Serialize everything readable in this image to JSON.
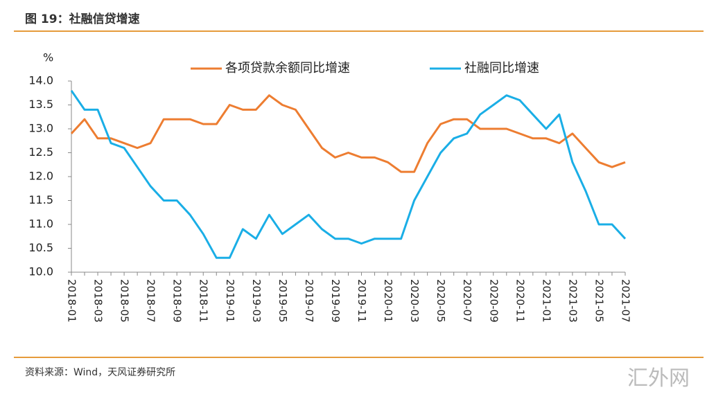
{
  "header": {
    "title": "图 19：社融信贷增速"
  },
  "chart_data": {
    "type": "line",
    "y_unit": "%",
    "categories": [
      "2018-01",
      null,
      "2018-03",
      null,
      "2018-05",
      null,
      "2018-07",
      null,
      "2018-09",
      null,
      "2018-11",
      null,
      "2019-01",
      null,
      "2019-03",
      null,
      "2019-05",
      null,
      "2019-07",
      null,
      "2019-09",
      null,
      "2019-11",
      null,
      "2020-01",
      null,
      "2020-03",
      null,
      "2020-05",
      null,
      "2020-07",
      null,
      "2020-09",
      null,
      "2020-11",
      null,
      "2021-01",
      null,
      "2021-03",
      null,
      "2021-05",
      null,
      "2021-07"
    ],
    "series": [
      {
        "name": "各项贷款余额同比增速",
        "color": "#ed7d31",
        "values": [
          12.9,
          13.2,
          12.8,
          12.8,
          12.7,
          12.6,
          12.7,
          13.2,
          13.2,
          13.2,
          13.1,
          13.1,
          13.5,
          13.4,
          13.4,
          13.7,
          13.5,
          13.4,
          13.0,
          12.6,
          12.4,
          12.5,
          12.4,
          12.4,
          12.3,
          12.1,
          12.1,
          12.7,
          13.1,
          13.2,
          13.2,
          13.0,
          13.0,
          13.0,
          12.9,
          12.8,
          12.8,
          12.7,
          12.9,
          12.6,
          12.3,
          12.2,
          12.3
        ]
      },
      {
        "name": "社融同比增速",
        "color": "#1aaee6",
        "values": [
          13.8,
          13.4,
          13.4,
          12.7,
          12.6,
          12.2,
          11.8,
          11.5,
          11.5,
          11.2,
          10.8,
          10.3,
          10.3,
          10.9,
          10.7,
          11.2,
          10.8,
          11.0,
          11.2,
          10.9,
          10.7,
          10.7,
          10.6,
          10.7,
          10.7,
          10.7,
          11.5,
          12.0,
          12.5,
          12.8,
          12.9,
          13.3,
          13.5,
          13.7,
          13.6,
          13.3,
          13.0,
          13.3,
          12.3,
          11.7,
          11.0,
          11.0,
          10.7
        ]
      }
    ],
    "ylim": [
      10,
      14
    ],
    "yticks": [
      {
        "value": 10,
        "label": "10.0"
      },
      10.5,
      {
        "value": 11,
        "label": "11.0"
      },
      11.5,
      {
        "value": 12,
        "label": "12.0"
      },
      12.5,
      {
        "value": 13,
        "label": "13.0"
      },
      13.5,
      {
        "value": 14,
        "label": "14.0"
      }
    ],
    "grid": false
  },
  "footer": {
    "source": "资料来源：Wind，天风证券研究所"
  },
  "watermark": "汇外网"
}
